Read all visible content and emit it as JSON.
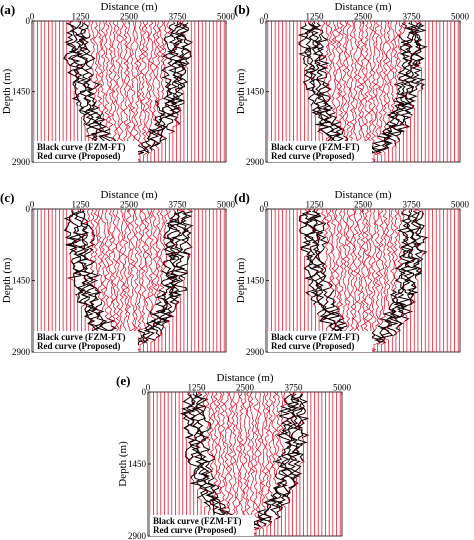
{
  "figure": {
    "xlabel": "Distance (m)",
    "ylabel": "Depth (m)",
    "x_ticks": [
      "0",
      "1250",
      "2500",
      "3750",
      "5000"
    ],
    "y_ticks": [
      "0",
      "1450",
      "2900"
    ],
    "legend": {
      "black": "Black curve (FZM-FT)",
      "red": "Red curve (Proposed)"
    },
    "colors": {
      "proposed": "#e0001b",
      "fzm_ft": "#000000"
    }
  },
  "chart_data": [
    {
      "type": "line",
      "panel_label": "(a)",
      "xlabel": "Distance (m)",
      "ylabel": "Depth (m)",
      "xlim": [
        0,
        5000
      ],
      "ylim": [
        0,
        2900
      ],
      "x_ticks": [
        0,
        1250,
        2500,
        3750,
        5000
      ],
      "y_ticks": [
        0,
        1450,
        2900
      ],
      "series": [
        {
          "name": "Black curve (FZM-FT)"
        },
        {
          "name": "Red curve (Proposed)"
        }
      ]
    },
    {
      "type": "line",
      "panel_label": "(b)",
      "xlabel": "Distance (m)",
      "ylabel": "Depth (m)",
      "xlim": [
        0,
        5000
      ],
      "ylim": [
        0,
        2900
      ],
      "x_ticks": [
        0,
        1250,
        2500,
        3750,
        5000
      ],
      "y_ticks": [
        0,
        1450,
        2900
      ],
      "series": [
        {
          "name": "Black curve (FZM-FT)"
        },
        {
          "name": "Red curve (Proposed)"
        }
      ]
    },
    {
      "type": "line",
      "panel_label": "(c)",
      "xlabel": "Distance (m)",
      "ylabel": "Depth (m)",
      "xlim": [
        0,
        5000
      ],
      "ylim": [
        0,
        2900
      ],
      "x_ticks": [
        0,
        1250,
        2500,
        3750,
        5000
      ],
      "y_ticks": [
        0,
        1450,
        2900
      ],
      "series": [
        {
          "name": "Black curve (FZM-FT)"
        },
        {
          "name": "Red curve (Proposed)"
        }
      ]
    },
    {
      "type": "line",
      "panel_label": "(d)",
      "xlabel": "Distance (m)",
      "ylabel": "Depth (m)",
      "xlim": [
        0,
        5000
      ],
      "ylim": [
        0,
        2900
      ],
      "x_ticks": [
        0,
        1250,
        2500,
        3750,
        5000
      ],
      "y_ticks": [
        0,
        1450,
        2900
      ],
      "series": [
        {
          "name": "Black curve (FZM-FT)"
        },
        {
          "name": "Red curve (Proposed)"
        }
      ]
    },
    {
      "type": "line",
      "panel_label": "(e)",
      "xlabel": "Distance (m)",
      "ylabel": "Depth (m)",
      "xlim": [
        0,
        5000
      ],
      "ylim": [
        0,
        2900
      ],
      "x_ticks": [
        0,
        1250,
        2500,
        3750,
        5000
      ],
      "y_ticks": [
        0,
        1450,
        2900
      ],
      "series": [
        {
          "name": "Black curve (FZM-FT)"
        },
        {
          "name": "Red curve (Proposed)"
        }
      ]
    }
  ]
}
